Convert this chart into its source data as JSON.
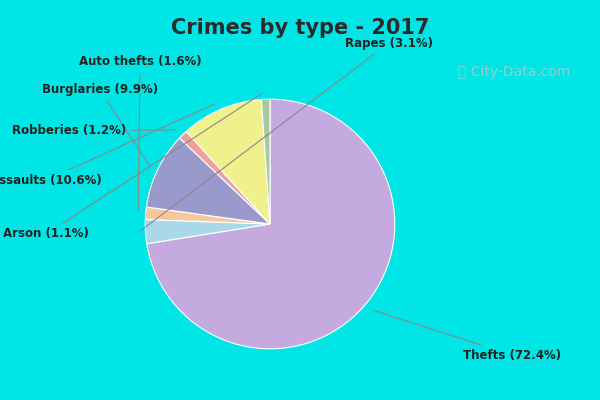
{
  "title": "Crimes by type - 2017",
  "title_fontsize": 15,
  "title_fontweight": "bold",
  "title_color": "#2a2a2a",
  "slices": [
    {
      "label": "Thefts",
      "pct": 72.4,
      "color": "#C4AADF"
    },
    {
      "label": "Rapes",
      "pct": 3.1,
      "color": "#A8D8EA"
    },
    {
      "label": "Auto thefts",
      "pct": 1.6,
      "color": "#F5C9A0"
    },
    {
      "label": "Burglaries",
      "pct": 9.9,
      "color": "#9999CC"
    },
    {
      "label": "Robberies",
      "pct": 1.2,
      "color": "#EFA0A0"
    },
    {
      "label": "Assaults",
      "pct": 10.6,
      "color": "#F0F08C"
    },
    {
      "label": "Arson",
      "pct": 1.1,
      "color": "#A8C8A0"
    }
  ],
  "border_color": "#00E5E5",
  "border_thickness": 8,
  "bg_color": "#D8EED8",
  "label_fontsize": 8.5,
  "label_color": "#222222",
  "label_fontweight": "bold",
  "watermark": "ⓘ City-Data.com",
  "watermark_color": "#AACCD0",
  "watermark_fontsize": 10
}
